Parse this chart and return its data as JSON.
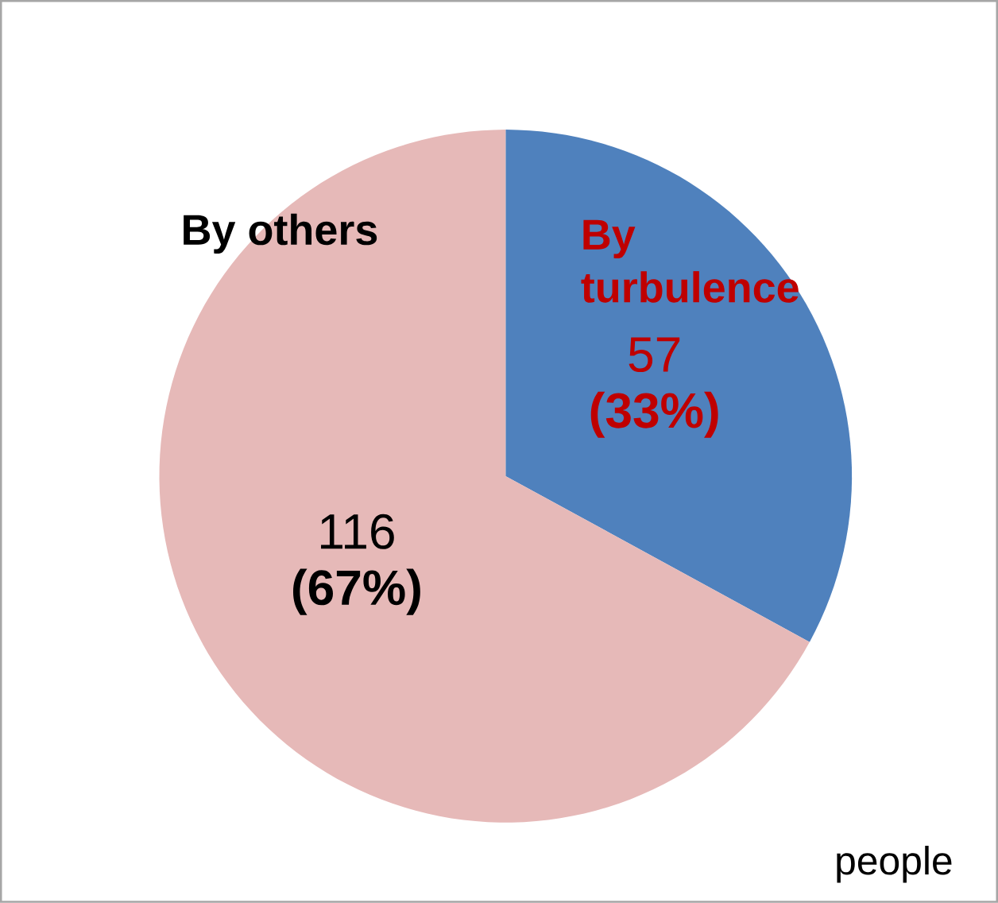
{
  "chart_data": {
    "type": "pie",
    "categories": [
      "By turbulence",
      "By others"
    ],
    "values": [
      57,
      116
    ],
    "colors": [
      "#4f81bd",
      "#e6b9b8"
    ],
    "value_labels": [
      "57 **(33%)**",
      "116 **(67%)**"
    ],
    "annotations": [
      "people"
    ]
  }
}
